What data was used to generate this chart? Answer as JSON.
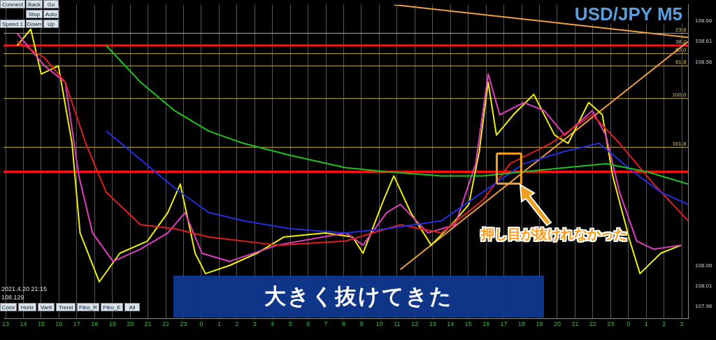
{
  "chart_data": {
    "type": "line",
    "title": "USD/JPY M5",
    "annotations": [
      "押し目が抜けれなかった",
      "大きく抜けてきた",
      "2021.4.20 21:15",
      "108.129",
      "Connect",
      "Back",
      "Go",
      "Stop",
      "Auto",
      "Speed 1",
      "Down",
      "Up",
      "Color",
      "Horiz",
      "Vartl",
      "Trend",
      "Fibo_R",
      "Fibo_E",
      "All",
      {
        "text": "23.6",
        "x": "2021-04-21T03:15",
        "y": 108.63
      },
      {
        "text": "38.2",
        "x": "2021-04-21T03:15",
        "y": 108.6
      },
      {
        "text": "50.0",
        "x": "2021-04-21T03:15",
        "y": 108.58
      },
      {
        "text": "61.8",
        "x": "2021-04-21T03:15",
        "y": 108.55
      },
      {
        "text": "100.0",
        "x": "2021-04-21T03:15",
        "y": 108.47
      },
      {
        "text": "161.8",
        "x": "2021-04-21T03:15",
        "y": 108.35
      }
    ],
    "series": [
      {
        "color": "#20c020",
        "x": [
          "2021-04-19T18:39",
          "2021-04-19T20:35",
          "2021-04-19T22:30",
          "2021-04-20T00:25",
          "2021-04-20T02:21",
          "2021-04-20T05:02",
          "2021-04-20T08:07",
          "2021-04-20T10:25",
          "2021-04-20T13:30",
          "2021-04-20T15:49",
          "2021-04-20T18:07",
          "2021-04-20T20:25",
          "2021-04-20T22:44",
          "2021-04-21T01:02",
          "2021-04-21T03:21"
        ],
        "values": [
          108.6,
          108.51,
          108.44,
          108.39,
          108.36,
          108.33,
          108.3,
          108.29,
          108.28,
          108.28,
          108.29,
          108.3,
          108.31,
          108.29,
          108.26
        ]
      },
      {
        "color": "#2030e0",
        "x": [
          "2021-04-19T18:39",
          "2021-04-19T20:35",
          "2021-04-19T22:30",
          "2021-04-20T00:25",
          "2021-04-20T02:21",
          "2021-04-20T05:02",
          "2021-04-20T08:07",
          "2021-04-20T10:25",
          "2021-04-20T13:30",
          "2021-04-20T15:49",
          "2021-04-20T18:07",
          "2021-04-20T20:25",
          "2021-04-20T22:21",
          "2021-04-21T00:16",
          "2021-04-21T01:49",
          "2021-04-21T03:21"
        ],
        "values": [
          108.39,
          108.32,
          108.25,
          108.19,
          108.17,
          108.15,
          108.14,
          108.15,
          108.17,
          108.24,
          108.31,
          108.34,
          108.36,
          108.29,
          108.24,
          108.21
        ]
      },
      {
        "color": "#e02020",
        "x": [
          "2021-04-19T13:39",
          "2021-04-19T15:11",
          "2021-04-19T16:21",
          "2021-04-19T17:30",
          "2021-04-19T18:39",
          "2021-04-19T20:35",
          "2021-04-19T22:30",
          "2021-04-20T00:25",
          "2021-04-20T04:16",
          "2021-04-20T08:07",
          "2021-04-20T11:11",
          "2021-04-20T13:30",
          "2021-04-20T15:49",
          "2021-04-20T17:21",
          "2021-04-20T19:39",
          "2021-04-20T21:58",
          "2021-04-20T23:30",
          "2021-04-21T01:25",
          "2021-04-21T03:21"
        ],
        "values": [
          108.61,
          108.57,
          108.51,
          108.36,
          108.24,
          108.16,
          108.15,
          108.13,
          108.11,
          108.12,
          108.16,
          108.14,
          108.22,
          108.31,
          108.36,
          108.43,
          108.36,
          108.26,
          108.17
        ]
      },
      {
        "color": "#e040c0",
        "x": [
          "2021-04-19T13:39",
          "2021-04-19T15:11",
          "2021-04-19T16:21",
          "2021-04-19T17:07",
          "2021-04-19T17:53",
          "2021-04-19T19:02",
          "2021-04-19T20:35",
          "2021-04-19T22:07",
          "2021-04-19T23:05",
          "2021-04-20T00:02",
          "2021-04-20T01:35",
          "2021-04-20T04:16",
          "2021-04-20T08:07",
          "2021-04-20T09:05",
          "2021-04-20T10:25",
          "2021-04-20T11:11",
          "2021-04-20T12:44",
          "2021-04-20T14:16",
          "2021-04-20T15:25",
          "2021-04-20T16:07",
          "2021-04-20T16:46",
          "2021-04-20T18:07",
          "2021-04-20T19:16",
          "2021-04-20T20:25",
          "2021-04-20T21:58",
          "2021-04-20T22:44",
          "2021-04-20T23:30",
          "2021-04-21T00:28",
          "2021-04-21T01:25",
          "2021-04-21T02:58"
        ],
        "values": [
          108.63,
          108.55,
          108.51,
          108.28,
          108.14,
          108.07,
          108.1,
          108.14,
          108.19,
          108.09,
          108.07,
          108.11,
          108.14,
          108.11,
          108.19,
          108.21,
          108.14,
          108.16,
          108.31,
          108.53,
          108.43,
          108.46,
          108.44,
          108.38,
          108.44,
          108.38,
          108.24,
          108.12,
          108.1,
          108.11
        ]
      },
      {
        "color": "#f0f000",
        "x": [
          "2021-04-19T13:39",
          "2021-04-19T14:25",
          "2021-04-19T15:00",
          "2021-04-19T15:58",
          "2021-04-19T16:44",
          "2021-04-19T17:11",
          "2021-04-19T18:16",
          "2021-04-19T19:25",
          "2021-04-19T20:58",
          "2021-04-19T22:07",
          "2021-04-19T22:49",
          "2021-04-19T23:39",
          "2021-04-20T00:14",
          "2021-04-20T01:35",
          "2021-04-20T03:07",
          "2021-04-20T04:39",
          "2021-04-20T06:58",
          "2021-04-20T08:30",
          "2021-04-20T09:05",
          "2021-04-20T10:14",
          "2021-04-20T10:49",
          "2021-04-20T11:46",
          "2021-04-20T12:55",
          "2021-04-20T14:16",
          "2021-04-20T15:02",
          "2021-04-20T15:37",
          "2021-04-20T16:07",
          "2021-04-20T16:35",
          "2021-04-20T17:32",
          "2021-04-20T18:41",
          "2021-04-20T19:51",
          "2021-04-20T20:37",
          "2021-04-20T21:46",
          "2021-04-20T22:32",
          "2021-04-20T23:07",
          "2021-04-21T00:05",
          "2021-04-21T00:39",
          "2021-04-21T01:49",
          "2021-04-21T02:58"
        ],
        "values": [
          108.6,
          108.64,
          108.53,
          108.55,
          108.36,
          108.14,
          108.02,
          108.09,
          108.12,
          108.19,
          108.26,
          108.09,
          108.04,
          108.06,
          108.09,
          108.13,
          108.14,
          108.13,
          108.09,
          108.22,
          108.28,
          108.19,
          108.11,
          108.17,
          108.21,
          108.34,
          108.51,
          108.38,
          108.43,
          108.48,
          108.38,
          108.36,
          108.46,
          108.43,
          108.28,
          108.12,
          108.04,
          108.09,
          108.11
        ]
      },
      {
        "color": "#f0a040",
        "x": [
          "2021-04-20T11:11",
          "2021-04-21T03:21"
        ],
        "values": [
          108.05,
          108.61
        ]
      },
      {
        "color": "#f0a040",
        "x": [
          "2021-04-20T10:49",
          "2021-04-21T03:21"
        ],
        "values": [
          108.7,
          108.62
        ]
      }
    ],
    "ref_lines": [
      {
        "axis": "y",
        "value": 108.63,
        "color": "#c8b040"
      },
      {
        "axis": "y",
        "value": 108.58,
        "color": "#c8b040"
      },
      {
        "axis": "y",
        "value": 108.55,
        "color": "#c8b040"
      },
      {
        "axis": "y",
        "value": 108.47,
        "color": "#c8b040"
      },
      {
        "axis": "y",
        "value": 108.35,
        "color": "#c8b040"
      },
      {
        "axis": "y",
        "value": 108.6,
        "color": "#ff1010"
      },
      {
        "axis": "y",
        "value": 108.29,
        "color": "#ff1010"
      }
    ],
    "xlim": [
      "2021-04-19T12:53",
      "2021-04-21T03:21"
    ],
    "ylim": [
      107.93,
      108.7
    ],
    "xticks": [
      {
        "value": "2021-04-19T13:00",
        "label": "13"
      },
      {
        "value": "2021-04-19T14:00",
        "label": "14"
      },
      {
        "value": "2021-04-19T15:00",
        "label": "15"
      },
      {
        "value": "2021-04-19T16:00",
        "label": "16"
      },
      {
        "value": "2021-04-19T17:00",
        "label": "17"
      },
      {
        "value": "2021-04-19T18:00",
        "label": "18"
      },
      {
        "value": "2021-04-19T19:00",
        "label": "19"
      },
      {
        "value": "2021-04-19T20:00",
        "label": "20"
      },
      {
        "value": "2021-04-19T21:00",
        "label": "21"
      },
      {
        "value": "2021-04-19T22:00",
        "label": "22"
      },
      {
        "value": "2021-04-19T23:00",
        "label": "23"
      },
      {
        "value": "2021-04-20T00:00",
        "label": "0"
      },
      {
        "value": "2021-04-20T01:00",
        "label": "1"
      },
      {
        "value": "2021-04-20T02:00",
        "label": "2"
      },
      {
        "value": "2021-04-20T03:00",
        "label": "3"
      },
      {
        "value": "2021-04-20T04:00",
        "label": "4"
      },
      {
        "value": "2021-04-20T05:00",
        "label": "5"
      },
      {
        "value": "2021-04-20T06:00",
        "label": "6"
      },
      {
        "value": "2021-04-20T07:00",
        "label": "7"
      },
      {
        "value": "2021-04-20T08:00",
        "label": "8"
      },
      {
        "value": "2021-04-20T09:00",
        "label": "9"
      },
      {
        "value": "2021-04-20T10:00",
        "label": "10"
      },
      {
        "value": "2021-04-20T11:00",
        "label": "11"
      },
      {
        "value": "2021-04-20T12:00",
        "label": "12"
      },
      {
        "value": "2021-04-20T13:00",
        "label": "13"
      },
      {
        "value": "2021-04-20T14:00",
        "label": "14"
      },
      {
        "value": "2021-04-20T15:00",
        "label": "15"
      },
      {
        "value": "2021-04-20T16:00",
        "label": "16"
      },
      {
        "value": "2021-04-20T17:00",
        "label": "17"
      },
      {
        "value": "2021-04-20T18:00",
        "label": "18"
      },
      {
        "value": "2021-04-20T19:00",
        "label": "19"
      },
      {
        "value": "2021-04-20T20:00",
        "label": "20"
      },
      {
        "value": "2021-04-20T21:00",
        "label": "21"
      },
      {
        "value": "2021-04-20T22:00",
        "label": "22"
      },
      {
        "value": "2021-04-20T23:00",
        "label": "23"
      },
      {
        "value": "2021-04-21T00:00",
        "label": "0"
      },
      {
        "value": "2021-04-21T01:00",
        "label": "1"
      },
      {
        "value": "2021-04-21T02:00",
        "label": "2"
      },
      {
        "value": "2021-04-21T03:00",
        "label": "3"
      }
    ],
    "yticks": [
      108.66,
      108.61,
      108.56,
      108.06,
      108.01,
      107.96
    ],
    "grid": "x",
    "marker": "none",
    "line_style": "solid",
    "legend": false
  }
}
